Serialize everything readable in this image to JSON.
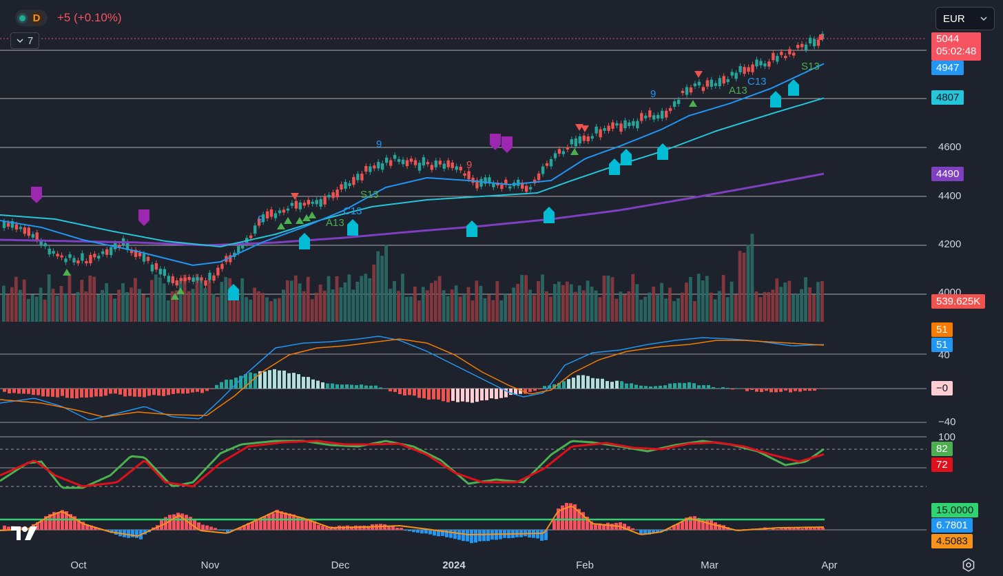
{
  "header": {
    "interval_badge": "D",
    "change_text": "+5 (+0.10%)",
    "currency": "EUR",
    "collapse_count": "7"
  },
  "price_axis": {
    "ticks": [
      "4600",
      "4400",
      "4200",
      "4000"
    ],
    "current_price": "5044",
    "countdown": "05:02:48",
    "ma_fast": "4947",
    "ma_mid": "4807",
    "ma_slow": "4490",
    "volume": "539.625K"
  },
  "macd_axis": {
    "ticks": [
      "40",
      "−40"
    ],
    "signal_value": "51",
    "macd_value": "51",
    "hist_value": "−0"
  },
  "stoch_axis": {
    "ticks": [
      "100"
    ],
    "k_value": "82",
    "d_value": "72"
  },
  "adx_axis": {
    "level": "15.0000",
    "value_a": "6.7801",
    "value_b": "4.5083"
  },
  "time_axis": {
    "labels": [
      "Oct",
      "Nov",
      "Dec",
      "2024",
      "Feb",
      "Mar",
      "Apr"
    ]
  },
  "annotations": {
    "texts": [
      "9",
      "9",
      "9",
      "9",
      "S13",
      "C13",
      "A13",
      "C13",
      "A13",
      "S13"
    ]
  },
  "colors": {
    "up": "#26a69a",
    "down": "#ef5350",
    "ma_fast": "#2196f3",
    "ma_mid": "#26c6da",
    "ma_slow": "#7e3fc1",
    "stoch_k": "#4caf50",
    "stoch_d": "#e0101a",
    "adx_level": "#2fd36f",
    "adx_line": "#f7931a",
    "hist_blue": "#2196f3",
    "hist_red": "#f7525f",
    "background": "#1e222d"
  },
  "icons": [
    "live-dot-icon",
    "chevron-down-icon",
    "tradingview-logo",
    "settings-gear-icon"
  ]
}
